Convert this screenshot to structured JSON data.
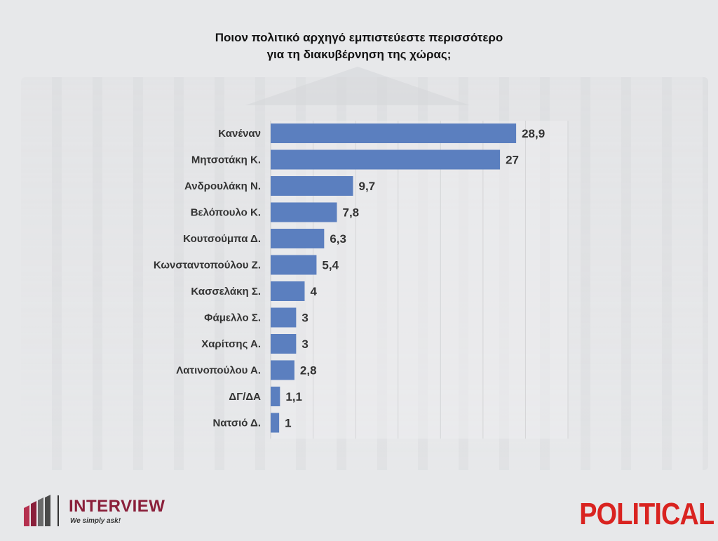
{
  "chart_data": {
    "type": "bar",
    "orientation": "horizontal",
    "title": "Ποιον πολιτικό αρχηγό εμπιστεύεστε περισσότερο για τη διακυβέρνηση της χώρας;",
    "title_lines": [
      "Ποιον πολιτικό αρχηγό εμπιστεύεστε περισσότερο",
      "για τη διακυβέρνηση της χώρας;"
    ],
    "categories": [
      "Κανέναν",
      "Μητσοτάκη Κ.",
      "Ανδρουλάκη Ν.",
      "Βελόπουλο Κ.",
      "Κουτσούμπα Δ.",
      "Κωνσταντοπούλου Ζ.",
      "Κασσελάκη Σ.",
      "Φάμελλο Σ.",
      "Χαρίτσης Α.",
      "Λατινοπούλου Α.",
      "ΔΓ/ΔΑ",
      "Νατσιό Δ."
    ],
    "values": [
      28.9,
      27,
      9.7,
      7.8,
      6.3,
      5.4,
      4,
      3,
      3,
      2.8,
      1.1,
      1
    ],
    "value_labels": [
      "28,9",
      "27",
      "9,7",
      "7,8",
      "6,3",
      "5,4",
      "4",
      "3",
      "3",
      "2,8",
      "1,1",
      "1"
    ],
    "xlim": [
      0,
      35
    ],
    "grid": true,
    "bar_color": "#5b7fbf"
  },
  "branding": {
    "interview_name": "INTERVIEW",
    "interview_tagline": "We simply ask!",
    "political_name": "POLITICAL",
    "interview_color": "#8a1f3a",
    "political_color": "#d92320"
  }
}
